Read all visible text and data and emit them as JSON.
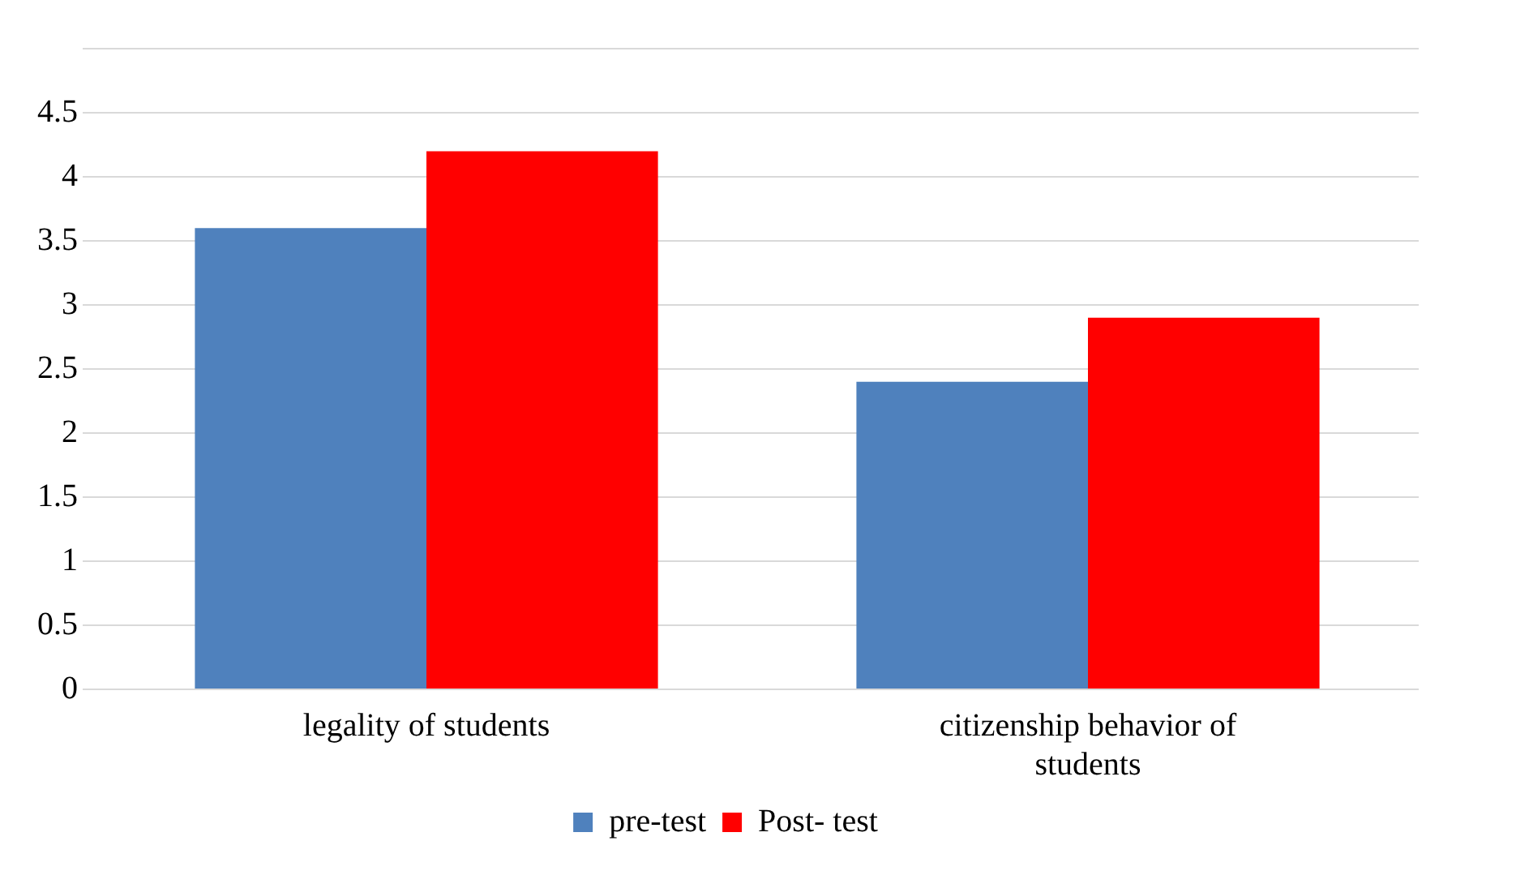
{
  "chart_data": {
    "type": "bar",
    "categories": [
      "legality of students",
      "citizenship behavior of students"
    ],
    "series": [
      {
        "name": "pre-test",
        "color": "#4f81bd",
        "values": [
          3.6,
          2.4
        ]
      },
      {
        "name": "Post- test",
        "color": "#ff0000",
        "values": [
          4.2,
          2.9
        ]
      }
    ],
    "ylim": [
      0,
      5
    ],
    "yticks": [
      0,
      0.5,
      1,
      1.5,
      2,
      2.5,
      3,
      3.5,
      4,
      4.5,
      {
        "value": 5,
        "label": null
      }
    ],
    "grid": "y",
    "legend": "bottom"
  }
}
